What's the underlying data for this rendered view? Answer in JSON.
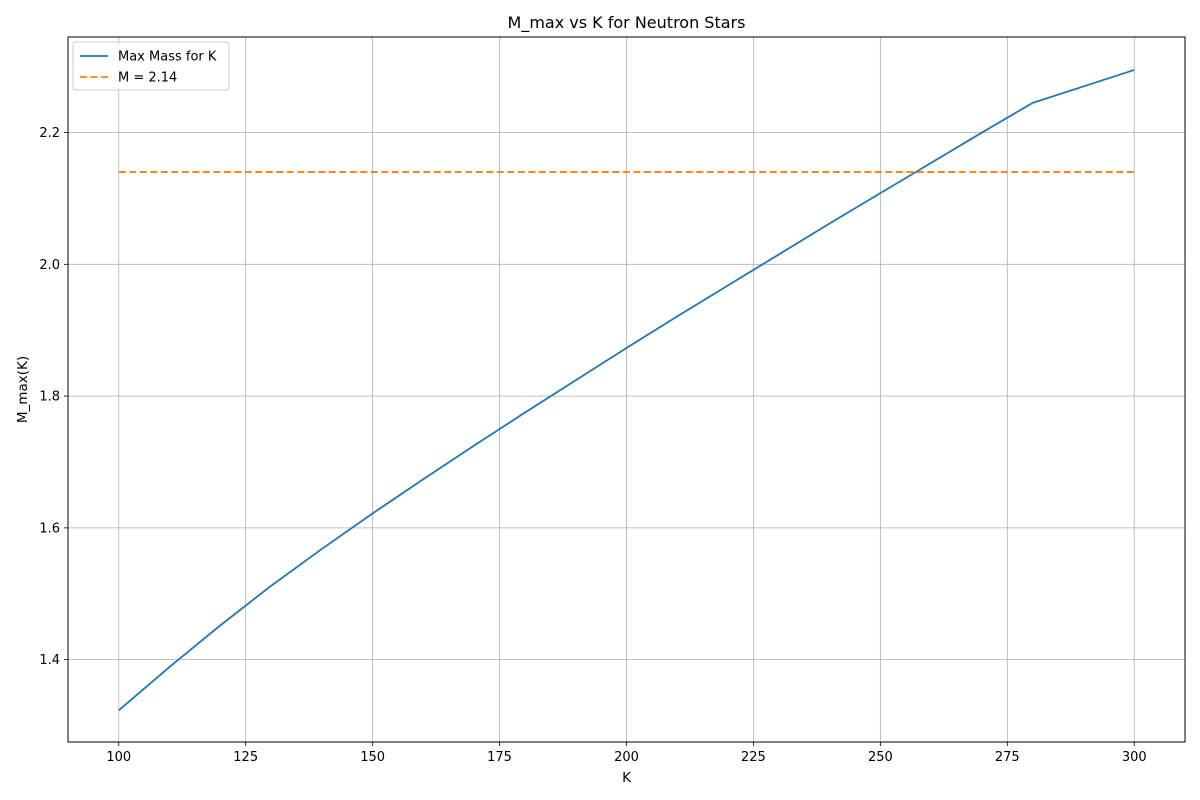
{
  "chart_data": {
    "type": "line",
    "title": "M_max vs K for Neutron Stars",
    "xlabel": "K",
    "ylabel": "M_max(K)",
    "xlim": [
      90,
      310
    ],
    "ylim": [
      1.275,
      2.345
    ],
    "x_ticks": [
      100,
      125,
      150,
      175,
      200,
      225,
      250,
      275,
      300
    ],
    "y_ticks": [
      1.4,
      1.6,
      1.8,
      2.0,
      2.2
    ],
    "x_tick_labels": [
      "100",
      "125",
      "150",
      "175",
      "200",
      "225",
      "250",
      "275",
      "300"
    ],
    "y_tick_labels": [
      "1.4",
      "1.6",
      "1.8",
      "2.0",
      "2.2"
    ],
    "grid": true,
    "legend_position": "top-left",
    "series": [
      {
        "name": "Max Mass for K",
        "style": "solid",
        "color": "#1f77b4",
        "x": [
          100,
          110,
          120,
          130,
          140,
          150,
          160,
          170,
          180,
          190,
          200,
          210,
          220,
          230,
          240,
          250,
          260,
          270,
          280,
          290,
          300
        ],
        "y": [
          1.323,
          1.389,
          1.452,
          1.512,
          1.568,
          1.622,
          1.674,
          1.725,
          1.775,
          1.824,
          1.873,
          1.921,
          1.968,
          2.015,
          2.062,
          2.108,
          2.154,
          2.2,
          2.245,
          2.27,
          2.295
        ]
      },
      {
        "name": "M = 2.14",
        "style": "dashed",
        "color": "#ff7f0e",
        "x": [
          100,
          300
        ],
        "y": [
          2.14,
          2.14
        ]
      }
    ]
  }
}
